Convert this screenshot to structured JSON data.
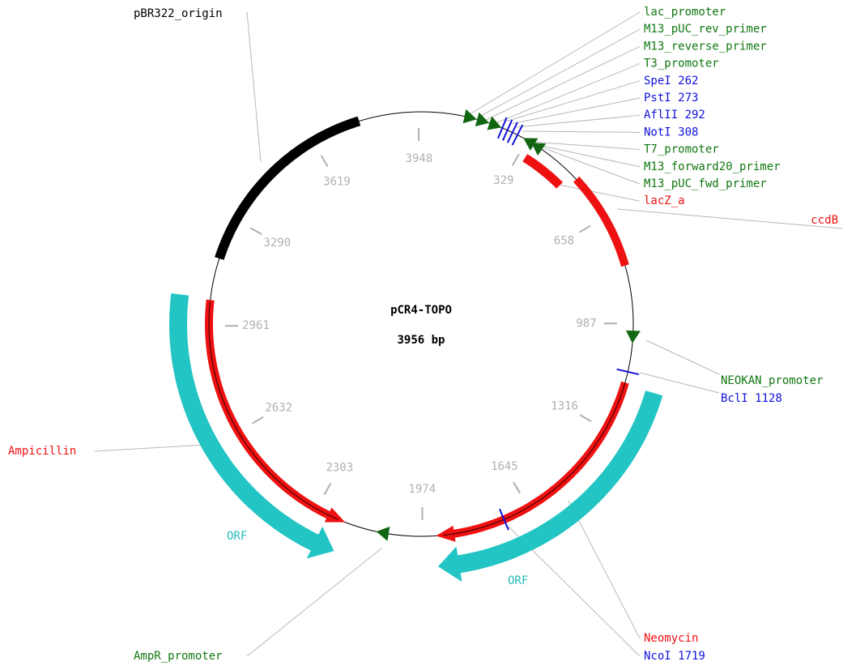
{
  "map": {
    "title": "pCR4-TOPO",
    "size": "3956 bp",
    "ticks": [
      329,
      658,
      987,
      1316,
      1645,
      1974,
      2303,
      2632,
      2961,
      3290,
      3619,
      3948
    ],
    "right_labels": [
      "lac_promoter",
      "M13_pUC_rev_primer",
      "M13_reverse_primer",
      "T3_promoter",
      "SpeI 262",
      "PstI 273",
      "AflII 292",
      "NotI 308",
      "T7_promoter",
      "M13_forward20_primer",
      "M13_pUC_fwd_primer",
      "lacZ_a"
    ],
    "origin": "pBR322_origin",
    "ccdb": "ccdB",
    "neokan": "NEOKAN_promoter",
    "bcli": "BclI 1128",
    "ampicillin": "Ampicillin",
    "ampr": "AmpR_promoter",
    "neomycin": "Neomycin",
    "ncoi": "NcoI 1719",
    "orf": [
      "ORF",
      "ORF"
    ]
  }
}
